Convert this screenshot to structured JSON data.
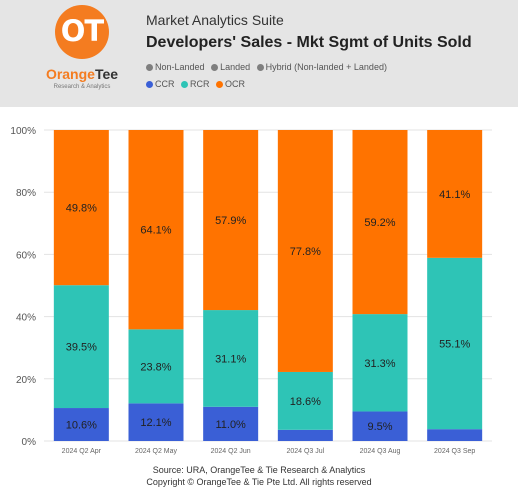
{
  "header": {
    "logo_glyph": "OT",
    "logo_name_a": "Orange",
    "logo_name_b": "Tee",
    "logo_sub": "Research & Analytics",
    "suite": "Market Analytics Suite",
    "title": "Developers' Sales - Mkt Sgmt of Units Sold"
  },
  "legend_type": [
    {
      "label": "Non-Landed",
      "color": "#7f7f7f"
    },
    {
      "label": "Landed",
      "color": "#7f7f7f"
    },
    {
      "label": "Hybrid (Non-landed + Landed)",
      "color": "#7f7f7f"
    }
  ],
  "legend_segment": [
    {
      "label": "CCR",
      "color": "#3a5fd6"
    },
    {
      "label": "RCR",
      "color": "#2ec4b6"
    },
    {
      "label": "OCR",
      "color": "#ff7300"
    }
  ],
  "chart_data": {
    "type": "bar",
    "stacked": true,
    "title": "Developers' Sales - Mkt Sgmt of Units Sold",
    "categories": [
      "2024 Q2 Apr",
      "2024 Q2 May",
      "2024 Q2 Jun",
      "2024 Q3 Jul",
      "2024 Q3 Aug",
      "2024 Q3 Sep"
    ],
    "series": [
      {
        "name": "CCR",
        "color": "#3a5fd6",
        "values": [
          10.6,
          12.1,
          11.0,
          3.6,
          9.5,
          3.8
        ],
        "labels": [
          "10.6%",
          "12.1%",
          "11.0%",
          "",
          "9.5%",
          ""
        ]
      },
      {
        "name": "RCR",
        "color": "#2ec4b6",
        "values": [
          39.5,
          23.8,
          31.1,
          18.6,
          31.3,
          55.1
        ],
        "labels": [
          "39.5%",
          "23.8%",
          "31.1%",
          "18.6%",
          "31.3%",
          "55.1%"
        ]
      },
      {
        "name": "OCR",
        "color": "#ff7300",
        "values": [
          49.8,
          64.1,
          57.9,
          77.8,
          59.2,
          41.1
        ],
        "labels": [
          "49.8%",
          "64.1%",
          "57.9%",
          "77.8%",
          "59.2%",
          "41.1%"
        ]
      }
    ],
    "ylim": [
      0,
      100
    ],
    "yticks": [
      0,
      20,
      40,
      60,
      80,
      100
    ],
    "ytick_labels": [
      "0%",
      "20%",
      "40%",
      "60%",
      "80%",
      "100%"
    ],
    "xlabel": "",
    "ylabel": "",
    "grid": true,
    "legend": "top"
  },
  "footer": {
    "source": "Source: URA, OrangeTee & Tie Research & Analytics",
    "copyright": "Copyright © OrangeTee & Tie Pte Ltd. All rights reserved"
  }
}
